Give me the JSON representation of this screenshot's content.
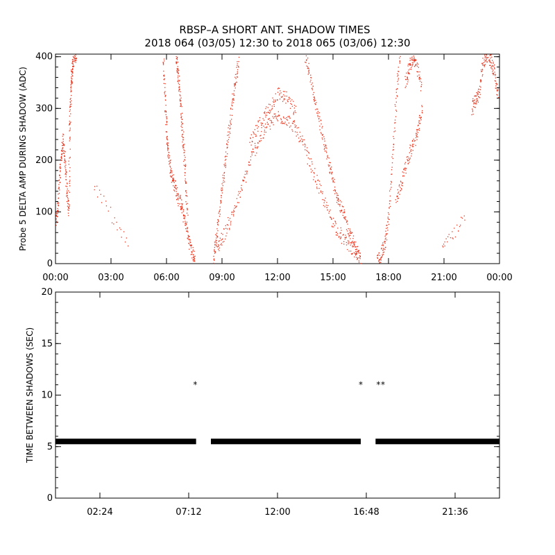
{
  "title_line1": "RBSP–A SHORT ANT. SHADOW TIMES",
  "title_line2": "2018 064 (03/05) 12:30 to 2018 065 (03/06) 12:30",
  "chart_data": [
    {
      "type": "scatter",
      "ylabel": "Probe 5 DELTA AMP DURING SHADOW (ADC)",
      "xlabel": "",
      "xlim": [
        0,
        24
      ],
      "ylim": [
        0,
        405
      ],
      "x_ticks": [
        "00:00",
        "03:00",
        "06:00",
        "09:00",
        "12:00",
        "15:00",
        "18:00",
        "21:00",
        "00:00"
      ],
      "y_ticks": [
        0,
        100,
        200,
        300,
        400
      ],
      "color": "#e8341c",
      "series": [
        {
          "x": [
            0.0,
            0.1,
            0.2,
            0.3,
            0.4,
            0.5,
            0.6,
            0.7,
            0.75,
            0.8,
            0.85,
            0.9,
            1.0,
            1.1
          ],
          "y": [
            80,
            110,
            160,
            210,
            240,
            190,
            140,
            100,
            260,
            320,
            360,
            390,
            405,
            400
          ]
        },
        {
          "x": [
            2.1,
            3.9
          ],
          "y": [
            150,
            35
          ]
        },
        {
          "x": [
            5.8,
            5.9,
            6.0,
            6.1,
            6.25,
            6.4,
            6.6,
            6.8,
            7.0,
            7.2,
            7.4,
            7.5
          ],
          "y": [
            400,
            320,
            250,
            210,
            175,
            155,
            130,
            110,
            80,
            45,
            20,
            5
          ]
        },
        {
          "x": [
            6.5,
            6.6,
            6.7,
            6.8,
            6.9,
            7.0,
            7.1
          ],
          "y": [
            400,
            370,
            330,
            280,
            230,
            170,
            100
          ]
        },
        {
          "x": [
            8.5,
            8.7,
            8.9,
            9.1,
            9.3,
            9.5,
            9.7,
            9.9
          ],
          "y": [
            10,
            60,
            120,
            180,
            240,
            300,
            350,
            400
          ]
        },
        {
          "x": [
            8.6,
            9.0,
            9.5,
            10.0,
            10.5,
            11.0,
            11.5,
            12.0,
            12.5,
            13.0,
            13.5,
            14.0,
            14.5,
            15.0,
            15.5,
            16.0,
            16.4
          ],
          "y": [
            25,
            50,
            90,
            140,
            200,
            240,
            270,
            285,
            280,
            260,
            220,
            170,
            120,
            80,
            50,
            30,
            15
          ]
        },
        {
          "x": [
            10.5,
            11.0,
            11.5,
            12.0,
            12.5,
            13.0
          ],
          "y": [
            230,
            270,
            300,
            330,
            320,
            290
          ]
        },
        {
          "x": [
            13.5,
            13.8,
            14.1,
            14.4,
            14.7,
            15.0,
            15.3,
            15.6,
            15.9,
            16.2,
            16.5
          ],
          "y": [
            400,
            350,
            300,
            250,
            200,
            160,
            120,
            90,
            60,
            30,
            5
          ]
        },
        {
          "x": [
            17.4,
            17.6,
            17.8,
            18.0,
            18.2,
            18.4,
            18.6
          ],
          "y": [
            5,
            20,
            40,
            90,
            200,
            320,
            400
          ]
        },
        {
          "x": [
            18.4,
            18.7,
            19.0,
            19.3,
            19.6,
            19.8
          ],
          "y": [
            120,
            160,
            200,
            230,
            260,
            300
          ]
        },
        {
          "x": [
            18.9,
            19.1,
            19.3,
            19.5,
            19.8
          ],
          "y": [
            350,
            380,
            400,
            380,
            340
          ]
        },
        {
          "x": [
            22.5,
            22.7,
            22.9,
            23.1,
            23.3,
            23.5,
            23.7,
            23.9
          ],
          "y": [
            300,
            320,
            330,
            390,
            405,
            395,
            370,
            320
          ]
        },
        {
          "x": [
            20.9,
            22.1
          ],
          "y": [
            35,
            85
          ]
        }
      ]
    },
    {
      "type": "scatter",
      "ylabel": "TIME BETWEEN SHADOWS (SEC)",
      "xlabel": "",
      "xlim": [
        0,
        24
      ],
      "ylim": [
        0,
        20
      ],
      "x_ticks": [
        "02:24",
        "07:12",
        "12:00",
        "16:48",
        "21:36"
      ],
      "y_ticks": [
        0,
        5,
        10,
        15,
        20
      ],
      "marker": "*",
      "color": "#000000",
      "series": [
        {
          "name": "",
          "x": [
            7.55,
            16.5,
            17.45,
            17.7
          ],
          "y": [
            11,
            11,
            11,
            11
          ]
        },
        {
          "name": "",
          "x_ranges": [
            [
              0.0,
              7.6
            ],
            [
              8.4,
              16.5
            ],
            [
              17.3,
              24.0
            ]
          ],
          "y": 5.5
        }
      ]
    }
  ]
}
